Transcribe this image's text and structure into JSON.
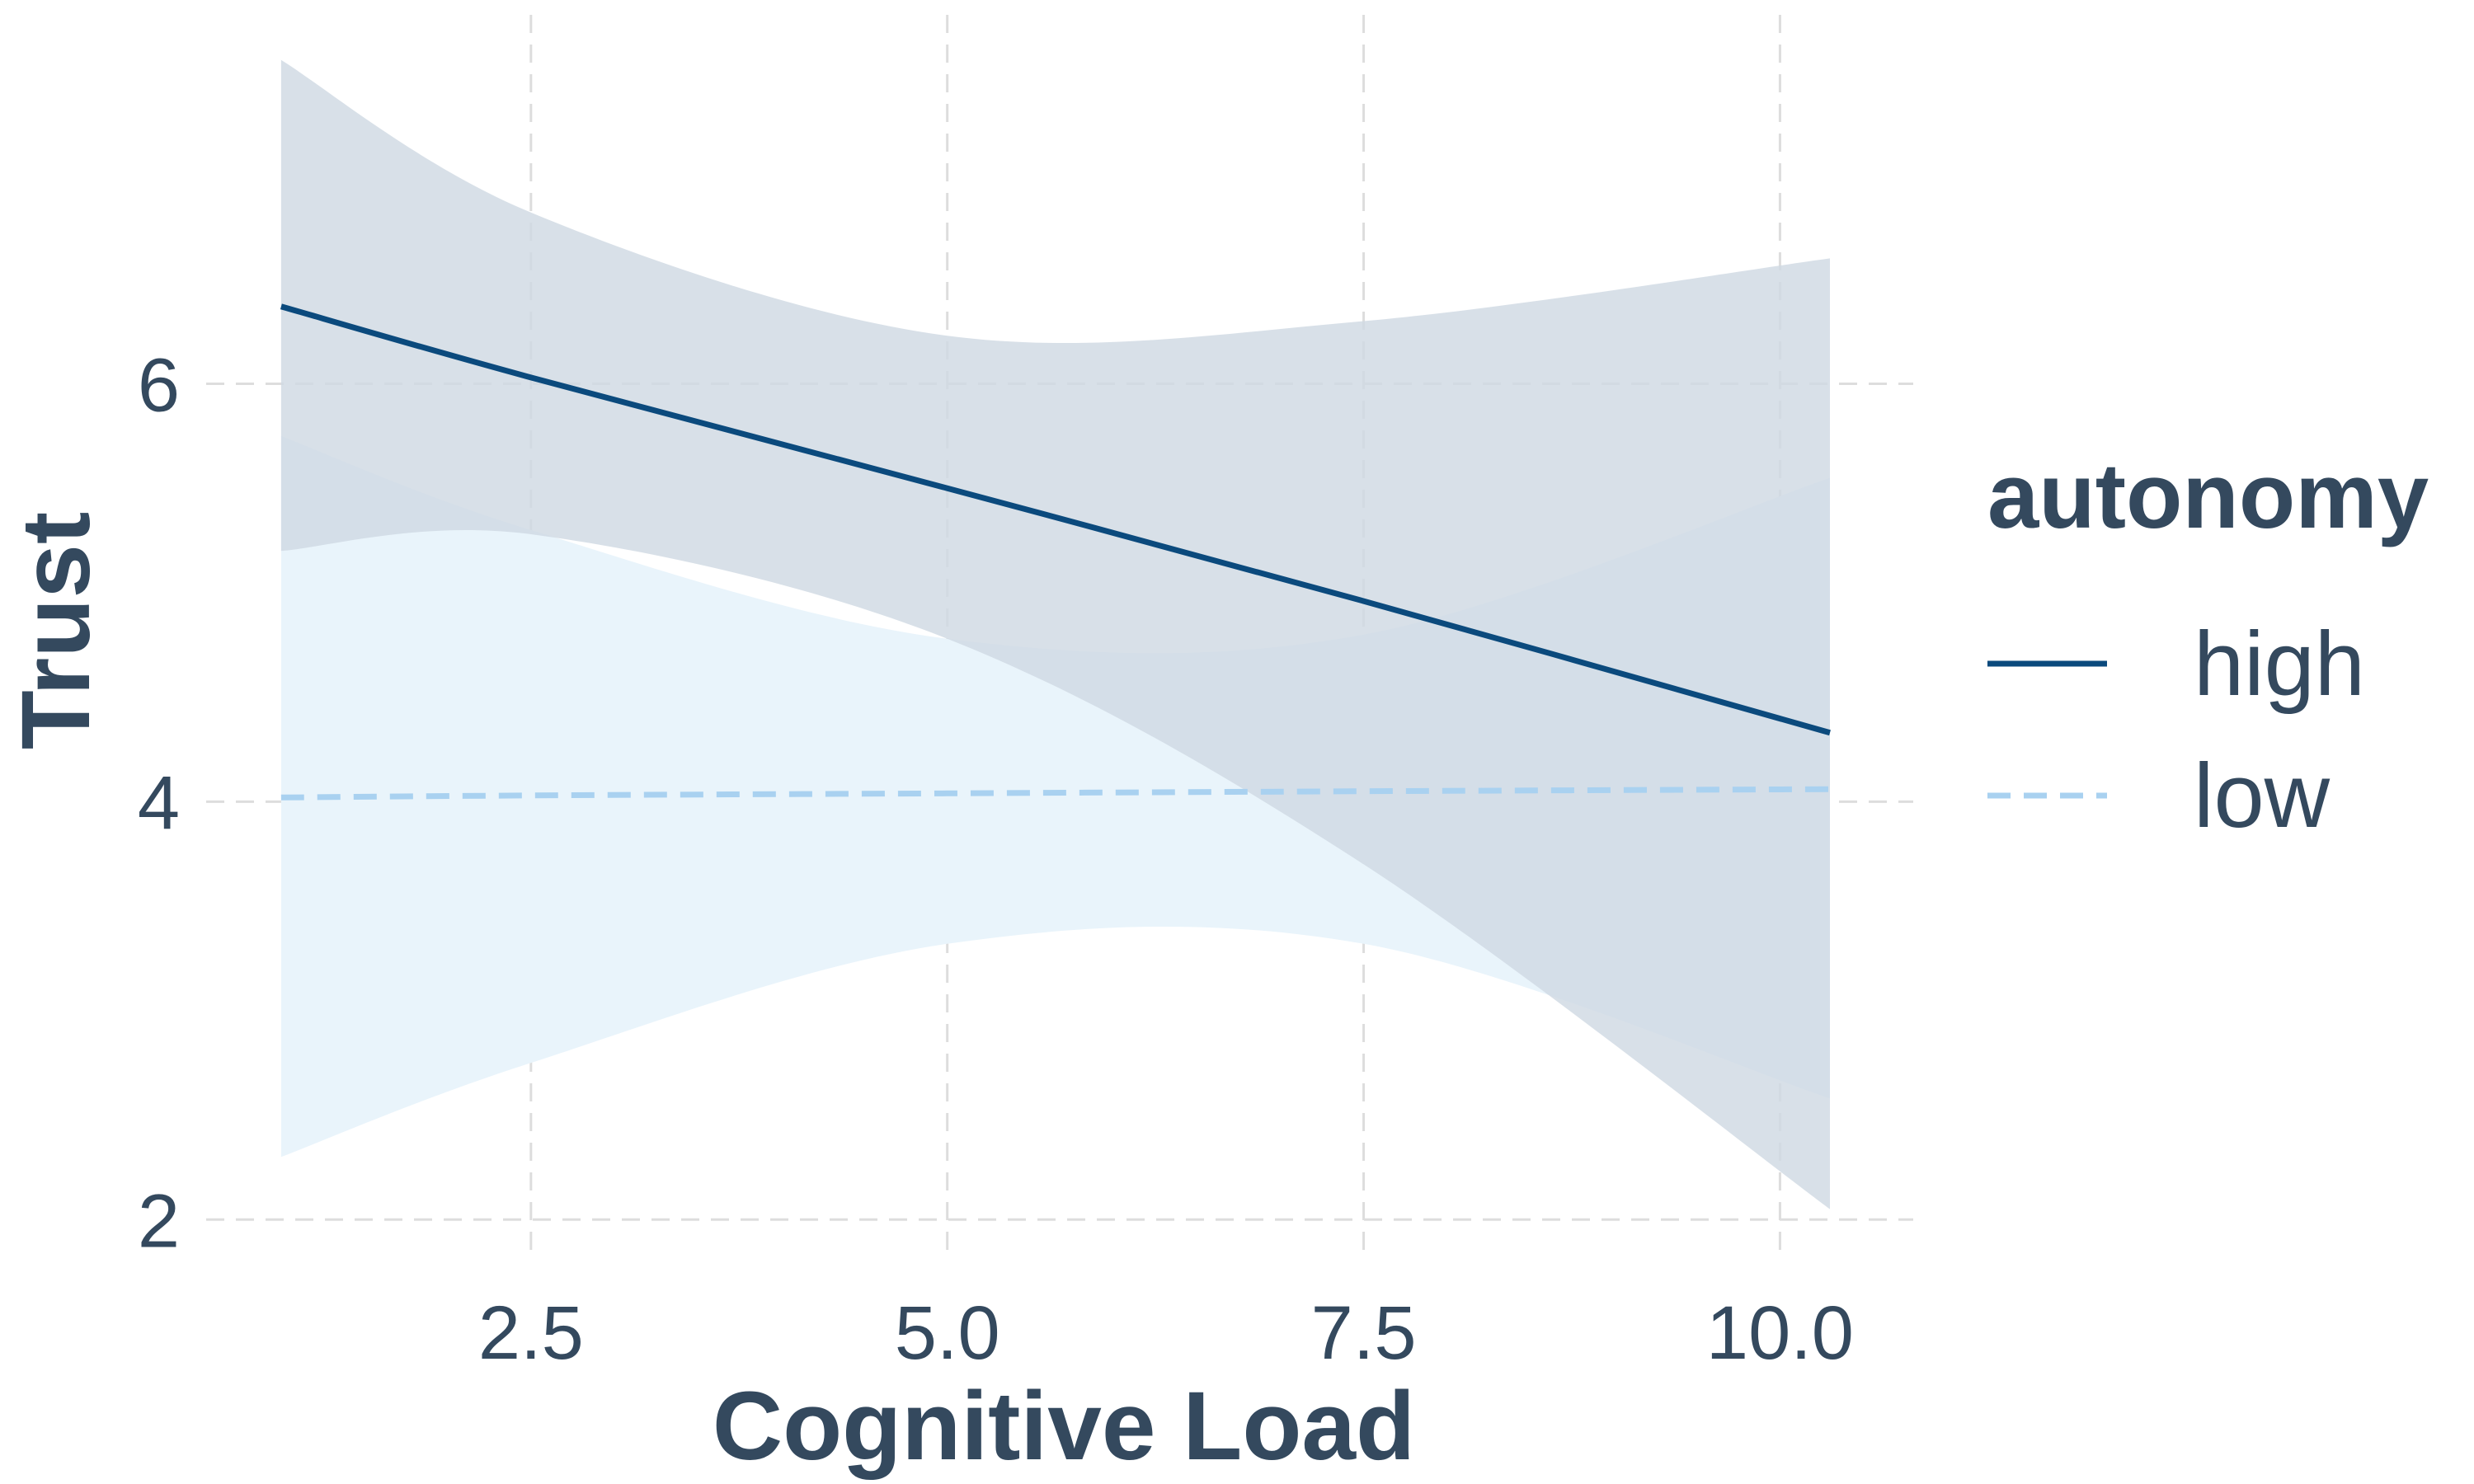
{
  "chart_data": {
    "type": "line",
    "xlabel": "Cognitive Load",
    "ylabel": "Trust",
    "xlim": [
      0.55,
      10.8
    ],
    "ylim": [
      1.8,
      7.6
    ],
    "x_ticks": [
      2.5,
      5.0,
      7.5,
      10.0
    ],
    "x_tick_labels": [
      "2.5",
      "5.0",
      "7.5",
      "10.0"
    ],
    "y_ticks": [
      2,
      4,
      6
    ],
    "y_tick_labels": [
      "2",
      "4",
      "6"
    ],
    "grid": true,
    "legend": {
      "title": "autonomy",
      "position": "right"
    },
    "series": [
      {
        "name": "high",
        "color": "#0b4a7d",
        "band_color": "#cfd9e3",
        "line_style": "solid",
        "x": [
          1,
          2.5,
          5.0,
          7.5,
          10.3
        ],
        "y": [
          6.37,
          6.03,
          5.5,
          4.96,
          4.33
        ],
        "ci_lower": [
          5.2,
          5.28,
          4.78,
          3.7,
          2.05
        ],
        "ci_upper": [
          7.55,
          6.82,
          6.23,
          6.3,
          6.6
        ]
      },
      {
        "name": "low",
        "color": "#a9d1f0",
        "band_color": "#e9f4fb",
        "line_style": "dashed",
        "x": [
          1,
          2.5,
          5.0,
          7.5,
          10.3
        ],
        "y": [
          4.02,
          4.03,
          4.04,
          4.05,
          4.06
        ],
        "ci_lower": [
          2.3,
          2.75,
          3.32,
          3.32,
          2.58
        ],
        "ci_upper": [
          5.75,
          5.3,
          4.78,
          4.8,
          5.55
        ]
      }
    ]
  }
}
